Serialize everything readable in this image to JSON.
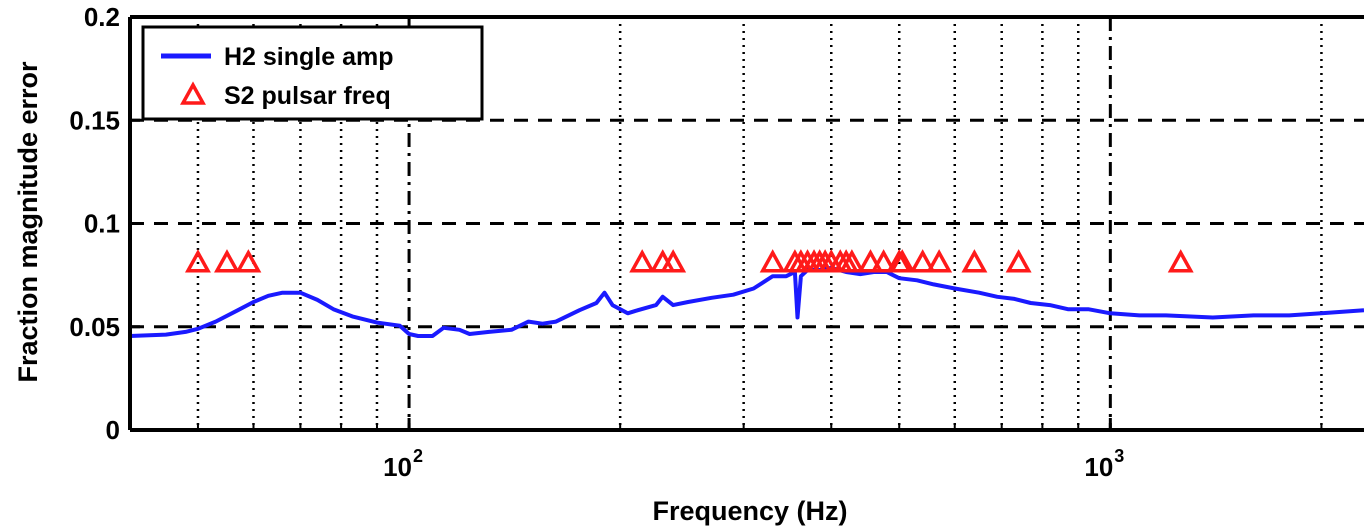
{
  "chart_data": {
    "type": "line",
    "xscale": "log",
    "xlim": [
      40,
      2300
    ],
    "ylim": [
      0,
      0.2
    ],
    "xlabel": "Frequency (Hz)",
    "ylabel": "Fraction magnitude error",
    "x_major_ticks": [
      {
        "value": 100,
        "base": "10",
        "exp": "2"
      },
      {
        "value": 1000,
        "base": "10",
        "exp": "3"
      }
    ],
    "x_minor_ticks": [
      50,
      60,
      70,
      80,
      90,
      200,
      300,
      400,
      500,
      600,
      700,
      800,
      900,
      2000
    ],
    "y_ticks": [
      {
        "value": 0,
        "label": "0"
      },
      {
        "value": 0.05,
        "label": "0.05"
      },
      {
        "value": 0.1,
        "label": "0.1"
      },
      {
        "value": 0.15,
        "label": "0.15"
      },
      {
        "value": 0.2,
        "label": "0.2"
      }
    ],
    "grid": true,
    "legend_position": "top-left",
    "series": [
      {
        "name": "H2 single amp",
        "kind": "line",
        "color": "#1a1aff",
        "points": [
          [
            40,
            0.0455
          ],
          [
            45,
            0.0462
          ],
          [
            48,
            0.0475
          ],
          [
            50,
            0.049
          ],
          [
            53,
            0.0525
          ],
          [
            57,
            0.058
          ],
          [
            60,
            0.062
          ],
          [
            63,
            0.065
          ],
          [
            66,
            0.0665
          ],
          [
            70,
            0.0665
          ],
          [
            74,
            0.063
          ],
          [
            78,
            0.0585
          ],
          [
            83,
            0.055
          ],
          [
            90,
            0.052
          ],
          [
            97,
            0.0505
          ],
          [
            100,
            0.0465
          ],
          [
            103,
            0.0455
          ],
          [
            108,
            0.0455
          ],
          [
            112,
            0.0495
          ],
          [
            118,
            0.0485
          ],
          [
            122,
            0.0465
          ],
          [
            130,
            0.0475
          ],
          [
            140,
            0.0485
          ],
          [
            148,
            0.0525
          ],
          [
            155,
            0.0515
          ],
          [
            162,
            0.0525
          ],
          [
            175,
            0.058
          ],
          [
            185,
            0.0615
          ],
          [
            190,
            0.0665
          ],
          [
            195,
            0.0605
          ],
          [
            205,
            0.0565
          ],
          [
            212,
            0.058
          ],
          [
            225,
            0.0605
          ],
          [
            230,
            0.0645
          ],
          [
            238,
            0.0605
          ],
          [
            250,
            0.062
          ],
          [
            270,
            0.064
          ],
          [
            290,
            0.0655
          ],
          [
            310,
            0.0685
          ],
          [
            330,
            0.0745
          ],
          [
            345,
            0.0745
          ],
          [
            355,
            0.0765
          ],
          [
            358,
            0.0545
          ],
          [
            362,
            0.0745
          ],
          [
            370,
            0.0775
          ],
          [
            385,
            0.0775
          ],
          [
            400,
            0.0785
          ],
          [
            420,
            0.0765
          ],
          [
            440,
            0.0755
          ],
          [
            460,
            0.0765
          ],
          [
            480,
            0.0765
          ],
          [
            500,
            0.0735
          ],
          [
            530,
            0.0725
          ],
          [
            560,
            0.0705
          ],
          [
            600,
            0.0685
          ],
          [
            650,
            0.0665
          ],
          [
            690,
            0.0645
          ],
          [
            730,
            0.0635
          ],
          [
            770,
            0.0615
          ],
          [
            820,
            0.0605
          ],
          [
            870,
            0.0585
          ],
          [
            930,
            0.0585
          ],
          [
            1000,
            0.0565
          ],
          [
            1100,
            0.0555
          ],
          [
            1200,
            0.0555
          ],
          [
            1400,
            0.0545
          ],
          [
            1600,
            0.0555
          ],
          [
            1800,
            0.0555
          ],
          [
            2000,
            0.0565
          ],
          [
            2300,
            0.058
          ]
        ]
      },
      {
        "name": "S2 pulsar freq",
        "kind": "scatter",
        "marker": "triangle",
        "color": "#ff1a1a",
        "points": [
          [
            50,
            0.081
          ],
          [
            55,
            0.081
          ],
          [
            59,
            0.081
          ],
          [
            215,
            0.081
          ],
          [
            230,
            0.081
          ],
          [
            238,
            0.081
          ],
          [
            330,
            0.081
          ],
          [
            355,
            0.081
          ],
          [
            362,
            0.081
          ],
          [
            370,
            0.081
          ],
          [
            378,
            0.081
          ],
          [
            385,
            0.081
          ],
          [
            392,
            0.081
          ],
          [
            400,
            0.081
          ],
          [
            412,
            0.081
          ],
          [
            420,
            0.081
          ],
          [
            428,
            0.081
          ],
          [
            455,
            0.081
          ],
          [
            475,
            0.081
          ],
          [
            500,
            0.081
          ],
          [
            505,
            0.081
          ],
          [
            540,
            0.081
          ],
          [
            570,
            0.081
          ],
          [
            640,
            0.081
          ],
          [
            740,
            0.081
          ],
          [
            1260,
            0.081
          ]
        ]
      }
    ]
  }
}
